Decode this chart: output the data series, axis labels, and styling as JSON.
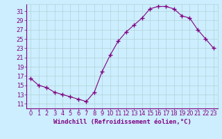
{
  "x": [
    0,
    1,
    2,
    3,
    4,
    5,
    6,
    7,
    8,
    9,
    10,
    11,
    12,
    13,
    14,
    15,
    16,
    17,
    18,
    19,
    20,
    21,
    22,
    23
  ],
  "y": [
    16.5,
    15.0,
    14.5,
    13.5,
    13.0,
    12.5,
    12.0,
    11.5,
    13.5,
    18.0,
    21.5,
    24.5,
    26.5,
    28.0,
    29.5,
    31.5,
    32.0,
    32.0,
    31.5,
    30.0,
    29.5,
    27.0,
    25.0,
    23.0
  ],
  "line_color": "#800080",
  "marker": "+",
  "marker_size": 4,
  "marker_lw": 1.0,
  "line_width": 0.8,
  "bg_color": "#cceeff",
  "grid_color": "#aacccc",
  "xlabel": "Windchill (Refroidissement éolien,°C)",
  "xlabel_fontsize": 6.5,
  "ylabel_ticks": [
    11,
    13,
    15,
    17,
    19,
    21,
    23,
    25,
    27,
    29,
    31
  ],
  "ylim": [
    10.0,
    32.5
  ],
  "xlim": [
    -0.5,
    23.5
  ],
  "tick_fontsize": 6.0,
  "tick_color": "#800080",
  "label_color": "#800080",
  "spine_color": "#800080"
}
